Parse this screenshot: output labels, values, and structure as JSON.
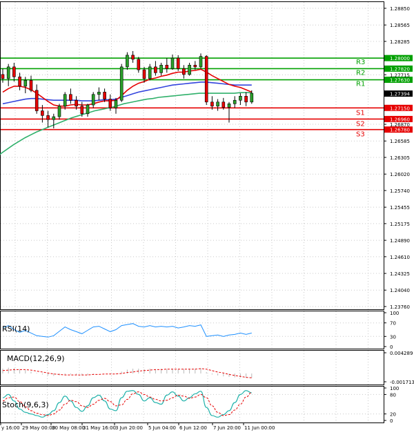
{
  "chart_data": {
    "type": "candlestick",
    "x_tick_labels": [
      "y 16:00",
      "29 May 00:00",
      "30 May 08:00",
      "31 May 16:00",
      "3 Jun 20:00",
      "5 Jun 04:00",
      "6 Jun 12:00",
      "7 Jun 20:00",
      "11 Jun 00:00"
    ],
    "y_tick_labels": [
      "1.28850",
      "1.28565",
      "1.28285",
      "1.27715",
      "1.26870",
      "1.26585",
      "1.26305",
      "1.26020",
      "1.25740",
      "1.25455",
      "1.25175",
      "1.24890",
      "1.24610",
      "1.24325",
      "1.24040",
      "1.23760"
    ],
    "ylim": [
      1.2376,
      1.2885
    ],
    "levels": [
      {
        "label": "R3",
        "value": 1.28,
        "value_text": "1.28000",
        "color": "#00a000"
      },
      {
        "label": "R2",
        "value": 1.2782,
        "value_text": "1.27820",
        "color": "#00a000"
      },
      {
        "label": "R1",
        "value": 1.2763,
        "value_text": "1.27630",
        "color": "#00a000"
      },
      {
        "label": "S1",
        "value": 1.2715,
        "value_text": "1.27150",
        "color": "#e60000"
      },
      {
        "label": "S2",
        "value": 1.2696,
        "value_text": "1.26960",
        "color": "#e60000"
      },
      {
        "label": "S3",
        "value": 1.2678,
        "value_text": "1.26780",
        "color": "#e60000"
      }
    ],
    "current_price": 1.27394,
    "current_price_text": "1.27394",
    "candles": [
      [
        1.2772,
        1.2782,
        1.2758,
        1.2765
      ],
      [
        1.2765,
        1.279,
        1.2752,
        1.2785
      ],
      [
        1.2785,
        1.2792,
        1.276,
        1.2768
      ],
      [
        1.2768,
        1.2775,
        1.2745,
        1.2752
      ],
      [
        1.2752,
        1.2768,
        1.274,
        1.2762
      ],
      [
        1.2762,
        1.277,
        1.2742,
        1.2745
      ],
      [
        1.2745,
        1.2755,
        1.2705,
        1.271
      ],
      [
        1.271,
        1.272,
        1.269,
        1.2702
      ],
      [
        1.2702,
        1.271,
        1.2682,
        1.2695
      ],
      [
        1.2695,
        1.2705,
        1.268,
        1.27
      ],
      [
        1.27,
        1.2722,
        1.2695,
        1.2718
      ],
      [
        1.2718,
        1.2742,
        1.2712,
        1.2738
      ],
      [
        1.2738,
        1.2748,
        1.2722,
        1.2728
      ],
      [
        1.2728,
        1.2735,
        1.2712,
        1.2718
      ],
      [
        1.2718,
        1.2725,
        1.27,
        1.2705
      ],
      [
        1.2705,
        1.2722,
        1.27,
        1.272
      ],
      [
        1.272,
        1.2742,
        1.2715,
        1.2738
      ],
      [
        1.2738,
        1.275,
        1.2728,
        1.2742
      ],
      [
        1.2742,
        1.2748,
        1.2725,
        1.273
      ],
      [
        1.273,
        1.2738,
        1.271,
        1.2715
      ],
      [
        1.2715,
        1.2732,
        1.2705,
        1.2728
      ],
      [
        1.2728,
        1.279,
        1.2725,
        1.2785
      ],
      [
        1.2785,
        1.281,
        1.278,
        1.2805
      ],
      [
        1.2805,
        1.2812,
        1.2792,
        1.2798
      ],
      [
        1.2798,
        1.2802,
        1.2775,
        1.278
      ],
      [
        1.278,
        1.2785,
        1.2758,
        1.2765
      ],
      [
        1.2765,
        1.279,
        1.2762,
        1.2785
      ],
      [
        1.2785,
        1.2795,
        1.277,
        1.2775
      ],
      [
        1.2775,
        1.2792,
        1.277,
        1.2788
      ],
      [
        1.2788,
        1.28,
        1.2775,
        1.2782
      ],
      [
        1.2782,
        1.2806,
        1.278,
        1.28
      ],
      [
        1.28,
        1.2805,
        1.2778,
        1.2782
      ],
      [
        1.2782,
        1.2788,
        1.2765,
        1.2772
      ],
      [
        1.2772,
        1.2792,
        1.277,
        1.2788
      ],
      [
        1.2788,
        1.2795,
        1.278,
        1.2785
      ],
      [
        1.2785,
        1.2808,
        1.2782,
        1.2803
      ],
      [
        1.2803,
        1.2805,
        1.272,
        1.2725
      ],
      [
        1.2725,
        1.2735,
        1.2712,
        1.2718
      ],
      [
        1.2718,
        1.273,
        1.271,
        1.2725
      ],
      [
        1.2725,
        1.2732,
        1.2712,
        1.2716
      ],
      [
        1.2716,
        1.2725,
        1.269,
        1.2722
      ],
      [
        1.2722,
        1.2735,
        1.2715,
        1.2728
      ],
      [
        1.2728,
        1.274,
        1.272,
        1.2735
      ],
      [
        1.2735,
        1.2742,
        1.2718,
        1.2725
      ],
      [
        1.2725,
        1.2745,
        1.2722,
        1.274
      ]
    ],
    "ma_red": [
      1.2742,
      1.2748,
      1.2752,
      1.2752,
      1.275,
      1.2746,
      1.274,
      1.2733,
      1.2726,
      1.272,
      1.2718,
      1.2718,
      1.272,
      1.2721,
      1.272,
      1.272,
      1.2722,
      1.2725,
      1.2727,
      1.2727,
      1.2728,
      1.2736,
      1.2745,
      1.2752,
      1.2757,
      1.276,
      1.2764,
      1.2766,
      1.2769,
      1.2771,
      1.2774,
      1.2776,
      1.2776,
      1.2778,
      1.2779,
      1.2781,
      1.2776,
      1.277,
      1.2765,
      1.276,
      1.2755,
      1.2752,
      1.275,
      1.2746,
      1.2742
    ],
    "ma_blue": [
      1.2722,
      1.2724,
      1.2726,
      1.2728,
      1.273,
      1.2731,
      1.2731,
      1.273,
      1.2729,
      1.2728,
      1.2728,
      1.2728,
      1.2728,
      1.2728,
      1.2727,
      1.2727,
      1.2727,
      1.2728,
      1.2729,
      1.2729,
      1.273,
      1.2733,
      1.2736,
      1.2739,
      1.2742,
      1.2744,
      1.2746,
      1.2748,
      1.275,
      1.2752,
      1.2754,
      1.2755,
      1.2756,
      1.2757,
      1.2758,
      1.2759,
      1.2759,
      1.2758,
      1.2757,
      1.2756,
      1.2755,
      1.2754,
      1.2754,
      1.2754,
      1.2754
    ],
    "ma_green": [
      1.263,
      1.2638,
      1.2645,
      1.2652,
      1.2658,
      1.2664,
      1.2669,
      1.2674,
      1.2678,
      1.2682,
      1.2686,
      1.269,
      1.2694,
      1.2698,
      1.2701,
      1.2704,
      1.2707,
      1.271,
      1.2712,
      1.2714,
      1.2716,
      1.2719,
      1.2722,
      1.2724,
      1.2726,
      1.2728,
      1.273,
      1.2731,
      1.2733,
      1.2734,
      1.2735,
      1.2736,
      1.2737,
      1.2738,
      1.2739,
      1.274,
      1.274,
      1.274,
      1.274,
      1.274,
      1.274,
      1.274,
      1.2741,
      1.2741,
      1.2741
    ],
    "rsi": {
      "label": "RSI(14)",
      "ticks": [
        "100",
        "70",
        "30",
        "0"
      ],
      "values": [
        55,
        62,
        50,
        42,
        48,
        40,
        32,
        30,
        28,
        32,
        45,
        58,
        50,
        44,
        38,
        48,
        58,
        60,
        52,
        44,
        50,
        62,
        65,
        68,
        60,
        58,
        62,
        58,
        60,
        58,
        60,
        55,
        58,
        62,
        60,
        64,
        30,
        32,
        34,
        30,
        34,
        36,
        40,
        36,
        40
      ]
    },
    "macd": {
      "label": "MACD(12,26,9)",
      "ticks": [
        "0.004289",
        "0.001713"
      ],
      "ticks_full": [
        "0.004289",
        "-0.001713"
      ],
      "hist": [
        0.001,
        0.0012,
        0.0011,
        0.0009,
        0.0007,
        0.0004,
        0.0001,
        -0.0002,
        -0.0004,
        -0.0005,
        -0.0004,
        -0.0002,
        -0.0002,
        -0.0003,
        -0.0004,
        -0.0003,
        -0.0001,
        0.0,
        0.0,
        -0.0001,
        -0.0001,
        0.0004,
        0.0008,
        0.001,
        0.001,
        0.0009,
        0.001,
        0.0009,
        0.001,
        0.0009,
        0.001,
        0.0009,
        0.0009,
        0.001,
        0.001,
        0.0011,
        0.0003,
        -0.0002,
        -0.0004,
        -0.0006,
        -0.0007,
        -0.0008,
        -0.0008,
        -0.0009,
        -0.0009
      ],
      "signal": [
        0.0006,
        0.0007,
        0.0008,
        0.0008,
        0.0008,
        0.0007,
        0.0005,
        0.0003,
        0.0001,
        -0.0001,
        -0.0002,
        -0.0003,
        -0.0003,
        -0.0003,
        -0.0003,
        -0.0003,
        -0.0002,
        -0.0002,
        -0.0001,
        -0.0001,
        -0.0001,
        0.0,
        0.0002,
        0.0003,
        0.0005,
        0.0006,
        0.0007,
        0.0008,
        0.0008,
        0.0009,
        0.0009,
        0.0009,
        0.0009,
        0.0009,
        0.0009,
        0.001,
        0.0009,
        0.0006,
        0.0003,
        0.0001,
        -0.0002,
        -0.0004,
        -0.0006,
        -0.0008,
        -0.0009
      ]
    },
    "stoch": {
      "label": "Stoch(9,6,3)",
      "ticks": [
        "100",
        "80",
        "20",
        "0"
      ],
      "main": [
        70,
        80,
        60,
        35,
        25,
        20,
        15,
        10,
        18,
        30,
        55,
        75,
        60,
        40,
        28,
        45,
        70,
        78,
        60,
        35,
        30,
        70,
        90,
        92,
        80,
        60,
        70,
        55,
        50,
        78,
        88,
        75,
        60,
        70,
        82,
        90,
        40,
        15,
        10,
        18,
        30,
        55,
        80,
        92,
        85
      ],
      "signal": [
        60,
        70,
        72,
        58,
        42,
        30,
        22,
        18,
        15,
        20,
        32,
        50,
        62,
        58,
        45,
        40,
        50,
        62,
        68,
        58,
        45,
        48,
        65,
        82,
        88,
        80,
        72,
        65,
        60,
        62,
        70,
        78,
        75,
        68,
        72,
        80,
        70,
        45,
        25,
        15,
        18,
        32,
        50,
        72,
        86
      ]
    }
  }
}
